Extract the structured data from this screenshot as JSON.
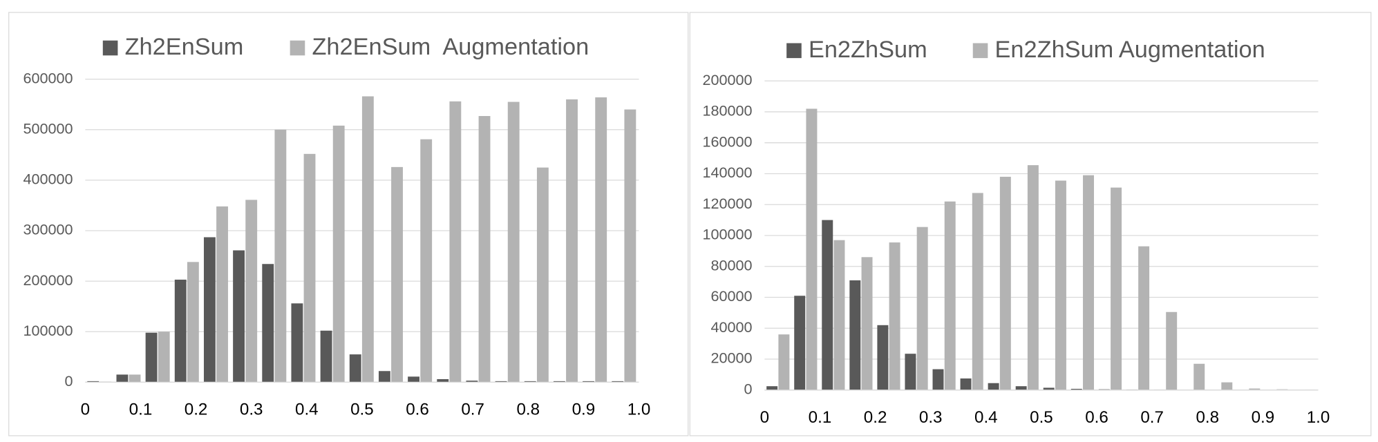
{
  "chart_data": [
    {
      "type": "bar",
      "categories": [
        null,
        null,
        null,
        null,
        null,
        null,
        null,
        null,
        null,
        null,
        null,
        null,
        null,
        null,
        null,
        null,
        null,
        null,
        null
      ],
      "series": [
        {
          "name": "Zh2EnSum",
          "color": "#595959",
          "values": [
            2000,
            15000,
            98000,
            203000,
            287000,
            261000,
            234000,
            156000,
            102000,
            55000,
            22000,
            11000,
            6000,
            3000,
            2000,
            2000,
            2000,
            2000,
            2000
          ]
        },
        {
          "name": "Zh2EnSum  Augmentation",
          "color": "#b3b3b3",
          "values": [
            1000,
            15000,
            100000,
            238000,
            348000,
            361000,
            500000,
            452000,
            508000,
            566000,
            426000,
            481000,
            556000,
            527000,
            555000,
            425000,
            560000,
            564000,
            540000
          ]
        }
      ],
      "ylim": [
        0,
        600000
      ],
      "yticks": [
        0,
        100000,
        200000,
        300000,
        400000,
        500000,
        600000
      ],
      "xlim": [
        0,
        1
      ],
      "xticks": [
        0,
        0.1,
        0.2,
        0.3,
        0.4,
        0.5,
        0.6,
        0.7,
        0.8,
        0.9,
        {
          "value": 1,
          "label": "1.0"
        }
      ],
      "grid": true,
      "legend": "top"
    },
    {
      "type": "bar",
      "categories": [
        null,
        null,
        null,
        null,
        null,
        null,
        null,
        null,
        null,
        null,
        null,
        null,
        null,
        null,
        null,
        null,
        null,
        null,
        null,
        null
      ],
      "series": [
        {
          "name": "En2ZhSum",
          "color": "#595959",
          "values": [
            2500,
            61000,
            110000,
            71000,
            42000,
            23500,
            13500,
            7500,
            4500,
            2500,
            1500,
            800,
            500,
            300,
            200,
            100,
            100,
            100,
            100,
            100
          ]
        },
        {
          "name": "En2ZhSum Augmentation",
          "color": "#b3b3b3",
          "values": [
            36000,
            182000,
            97000,
            86000,
            95500,
            105500,
            122000,
            127500,
            138000,
            145500,
            135500,
            139000,
            131000,
            93000,
            50500,
            17000,
            5000,
            1000,
            500,
            200
          ]
        }
      ],
      "ylim": [
        0,
        200000
      ],
      "yticks": [
        0,
        20000,
        40000,
        60000,
        80000,
        100000,
        120000,
        140000,
        160000,
        180000,
        200000
      ],
      "xlim": [
        0,
        1
      ],
      "xticks": [
        0,
        0.1,
        0.2,
        0.3,
        0.4,
        0.5,
        0.6,
        0.7,
        0.8,
        0.9,
        {
          "value": 1,
          "label": "1.0"
        }
      ],
      "grid": true,
      "legend": "top"
    }
  ]
}
